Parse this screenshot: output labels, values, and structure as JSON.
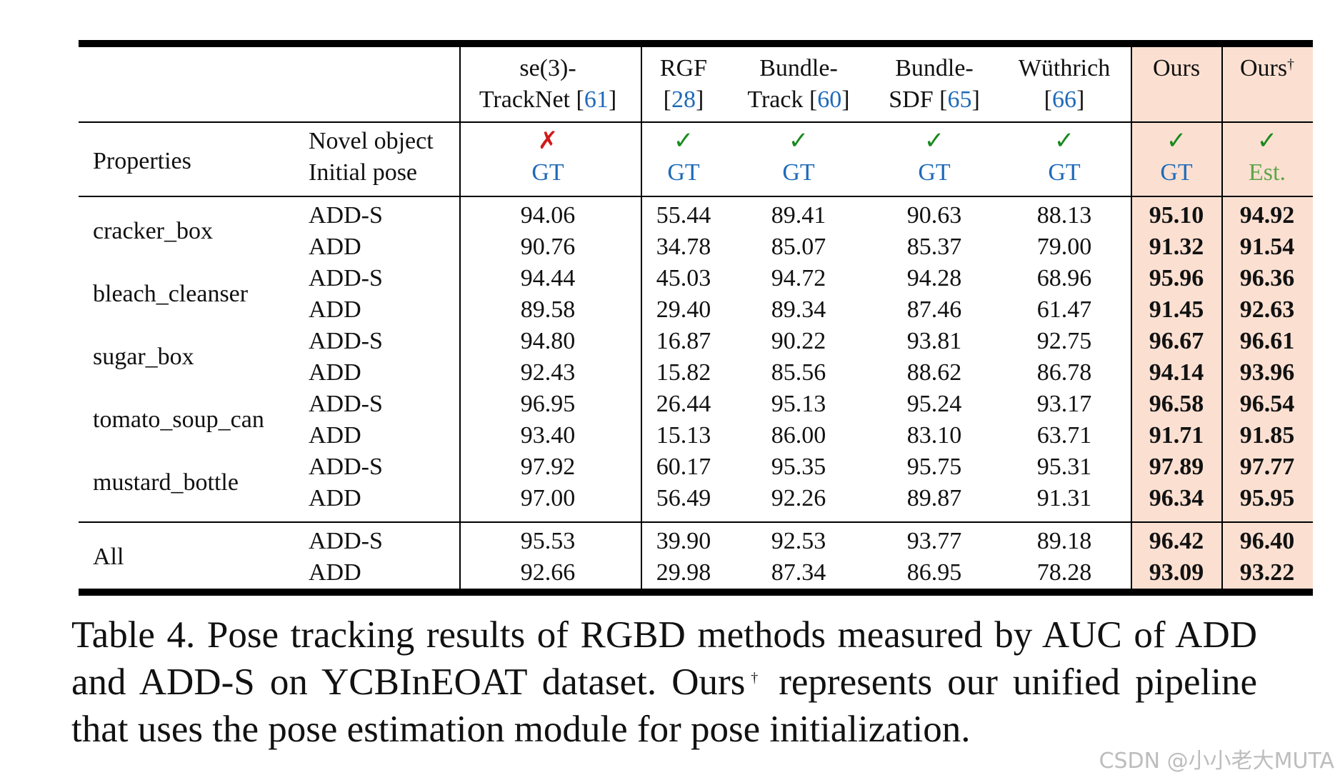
{
  "table": {
    "columns": [
      {
        "line1": "se(3)-",
        "line2_text": "TrackNet ",
        "ref": "61",
        "novel": "✗",
        "novel_color": "#d11a1a",
        "init": "GT",
        "init_color": "#1f6ab8"
      },
      {
        "line1": "RGF",
        "line2_text": "",
        "ref": "28",
        "novel": "✓",
        "novel_color": "#178a1d",
        "init": "GT",
        "init_color": "#1f6ab8"
      },
      {
        "line1": "Bundle-",
        "line2_text": "Track ",
        "ref": "60",
        "novel": "✓",
        "novel_color": "#178a1d",
        "init": "GT",
        "init_color": "#1f6ab8"
      },
      {
        "line1": "Bundle-",
        "line2_text": "SDF ",
        "ref": "65",
        "novel": "✓",
        "novel_color": "#178a1d",
        "init": "GT",
        "init_color": "#1f6ab8"
      },
      {
        "line1": "Wüthrich",
        "line2_text": "",
        "ref": "66",
        "novel": "✓",
        "novel_color": "#178a1d",
        "init": "GT",
        "init_color": "#1f6ab8"
      },
      {
        "line1": "Ours",
        "line2_text": "",
        "ref": "",
        "novel": "✓",
        "novel_color": "#178a1d",
        "init": "GT",
        "init_color": "#1f6ab8"
      },
      {
        "line1": "Ours",
        "sup": "†",
        "line2_text": "",
        "ref": "",
        "novel": "✓",
        "novel_color": "#178a1d",
        "init": "Est.",
        "init_color": "#5fa548"
      }
    ],
    "properties_label": "Properties",
    "novel_label": "Novel object",
    "init_label": "Initial pose",
    "highlight_color": "#fbe0d2",
    "rows": [
      {
        "object": "cracker_box",
        "metric": "ADD-S",
        "values": [
          "94.06",
          "55.44",
          "89.41",
          "90.63",
          "88.13",
          "95.10",
          "94.92"
        ]
      },
      {
        "object": "",
        "metric": "ADD",
        "values": [
          "90.76",
          "34.78",
          "85.07",
          "85.37",
          "79.00",
          "91.32",
          "91.54"
        ]
      },
      {
        "object": "bleach_cleanser",
        "metric": "ADD-S",
        "values": [
          "94.44",
          "45.03",
          "94.72",
          "94.28",
          "68.96",
          "95.96",
          "96.36"
        ]
      },
      {
        "object": "",
        "metric": "ADD",
        "values": [
          "89.58",
          "29.40",
          "89.34",
          "87.46",
          "61.47",
          "91.45",
          "92.63"
        ]
      },
      {
        "object": "sugar_box",
        "metric": "ADD-S",
        "values": [
          "94.80",
          "16.87",
          "90.22",
          "93.81",
          "92.75",
          "96.67",
          "96.61"
        ]
      },
      {
        "object": "",
        "metric": "ADD",
        "values": [
          "92.43",
          "15.82",
          "85.56",
          "88.62",
          "86.78",
          "94.14",
          "93.96"
        ]
      },
      {
        "object": "tomato_soup_can",
        "metric": "ADD-S",
        "values": [
          "96.95",
          "26.44",
          "95.13",
          "95.24",
          "93.17",
          "96.58",
          "96.54"
        ]
      },
      {
        "object": "",
        "metric": "ADD",
        "values": [
          "93.40",
          "15.13",
          "86.00",
          "83.10",
          "63.71",
          "91.71",
          "91.85"
        ]
      },
      {
        "object": "mustard_bottle",
        "metric": "ADD-S",
        "values": [
          "97.92",
          "60.17",
          "95.35",
          "95.75",
          "95.31",
          "97.89",
          "97.77"
        ]
      },
      {
        "object": "",
        "metric": "ADD",
        "values": [
          "97.00",
          "56.49",
          "92.26",
          "89.87",
          "91.31",
          "96.34",
          "95.95"
        ]
      },
      {
        "object": "All",
        "metric": "ADD-S",
        "values": [
          "95.53",
          "39.90",
          "92.53",
          "93.77",
          "89.18",
          "96.42",
          "96.40"
        ]
      },
      {
        "object": "",
        "metric": "ADD",
        "values": [
          "92.66",
          "29.98",
          "87.34",
          "86.95",
          "78.28",
          "93.09",
          "93.22"
        ]
      }
    ]
  },
  "caption": {
    "part1": "Table 4.  Pose tracking results of RGBD methods measured by AUC of ADD and ADD-S on YCBInEOAT dataset. Ours",
    "sup": "†",
    "part2": " represents our unified pipeline that uses the pose estimation module for pose initialization."
  },
  "watermark": "CSDN @小小老大MUTA"
}
